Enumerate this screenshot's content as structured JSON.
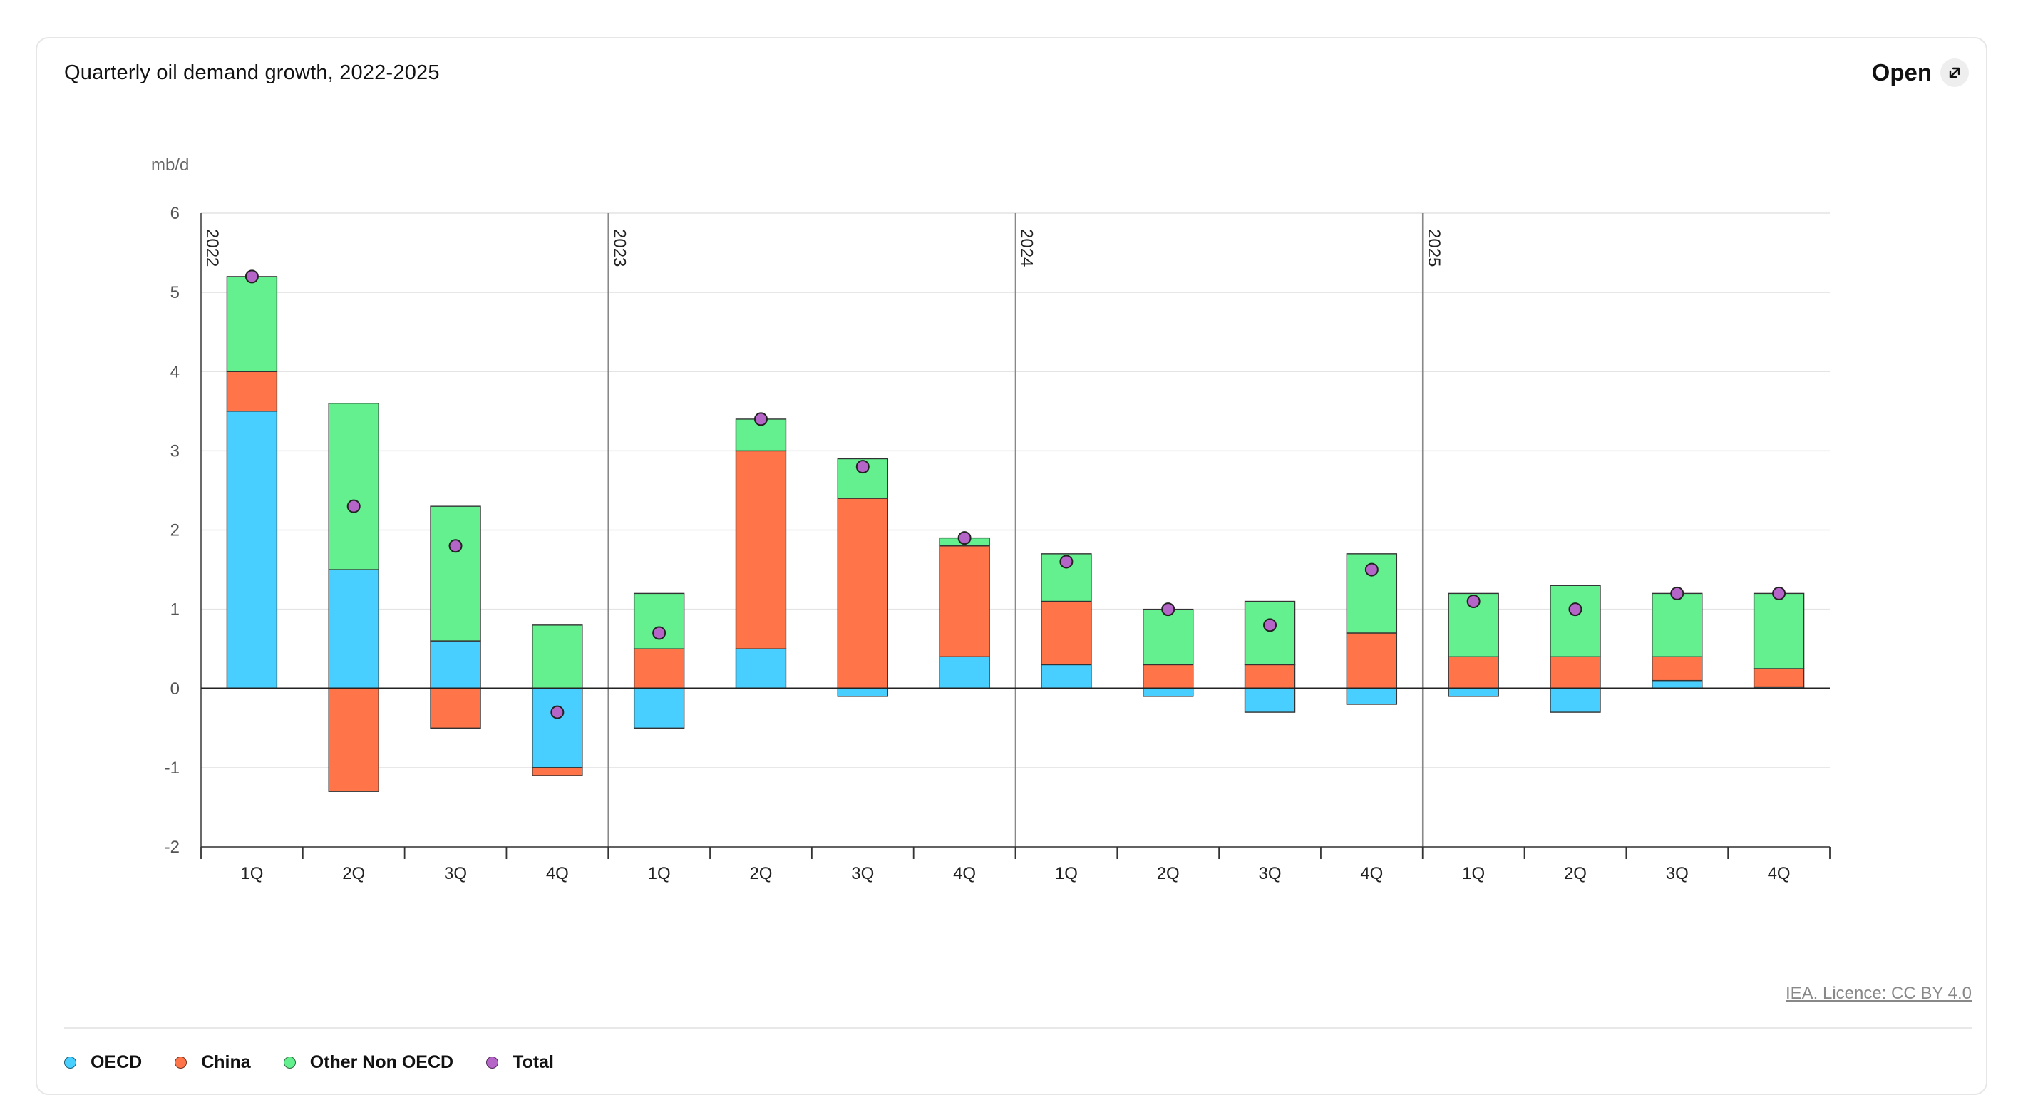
{
  "header": {
    "title": "Quarterly oil demand growth, 2022-2025",
    "open_label": "Open"
  },
  "source": "IEA. Licence: CC BY 4.0",
  "colors": {
    "OECD": "#48cfff",
    "China": "#ff7549",
    "Other Non OECD": "#64f08e",
    "Total": "#b565c8"
  },
  "chart_data": {
    "type": "bar",
    "stacked": true,
    "ylabel": "mb/d",
    "ylim": [
      -2,
      6
    ],
    "yticks": [
      6,
      5,
      4,
      3,
      2,
      1,
      0,
      -1,
      -2
    ],
    "grid": true,
    "years": [
      "2022",
      "2023",
      "2024",
      "2025"
    ],
    "categories": [
      "1Q",
      "2Q",
      "3Q",
      "4Q",
      "1Q",
      "2Q",
      "3Q",
      "4Q",
      "1Q",
      "2Q",
      "3Q",
      "4Q",
      "1Q",
      "2Q",
      "3Q",
      "4Q"
    ],
    "series": [
      {
        "name": "OECD",
        "values": [
          3.5,
          1.5,
          0.6,
          -1.0,
          -0.5,
          0.5,
          -0.1,
          0.4,
          0.3,
          -0.1,
          -0.3,
          -0.2,
          -0.1,
          -0.3,
          0.1,
          0.02
        ]
      },
      {
        "name": "China",
        "values": [
          0.5,
          -1.3,
          -0.5,
          -0.1,
          0.5,
          2.5,
          2.4,
          1.4,
          0.8,
          0.3,
          0.3,
          0.7,
          0.4,
          0.4,
          0.3,
          0.23
        ]
      },
      {
        "name": "Other Non OECD",
        "values": [
          1.2,
          2.1,
          1.7,
          0.8,
          0.7,
          0.4,
          0.5,
          0.1,
          0.6,
          0.7,
          0.8,
          1.0,
          0.8,
          0.9,
          0.8,
          0.95
        ]
      }
    ],
    "total": [
      5.2,
      2.3,
      1.8,
      -0.3,
      0.7,
      3.4,
      2.8,
      1.9,
      1.6,
      1.0,
      0.8,
      1.5,
      1.1,
      1.0,
      1.2,
      1.2
    ],
    "legend": [
      "OECD",
      "China",
      "Other Non OECD",
      "Total"
    ],
    "legend_position": "bottom-left"
  }
}
